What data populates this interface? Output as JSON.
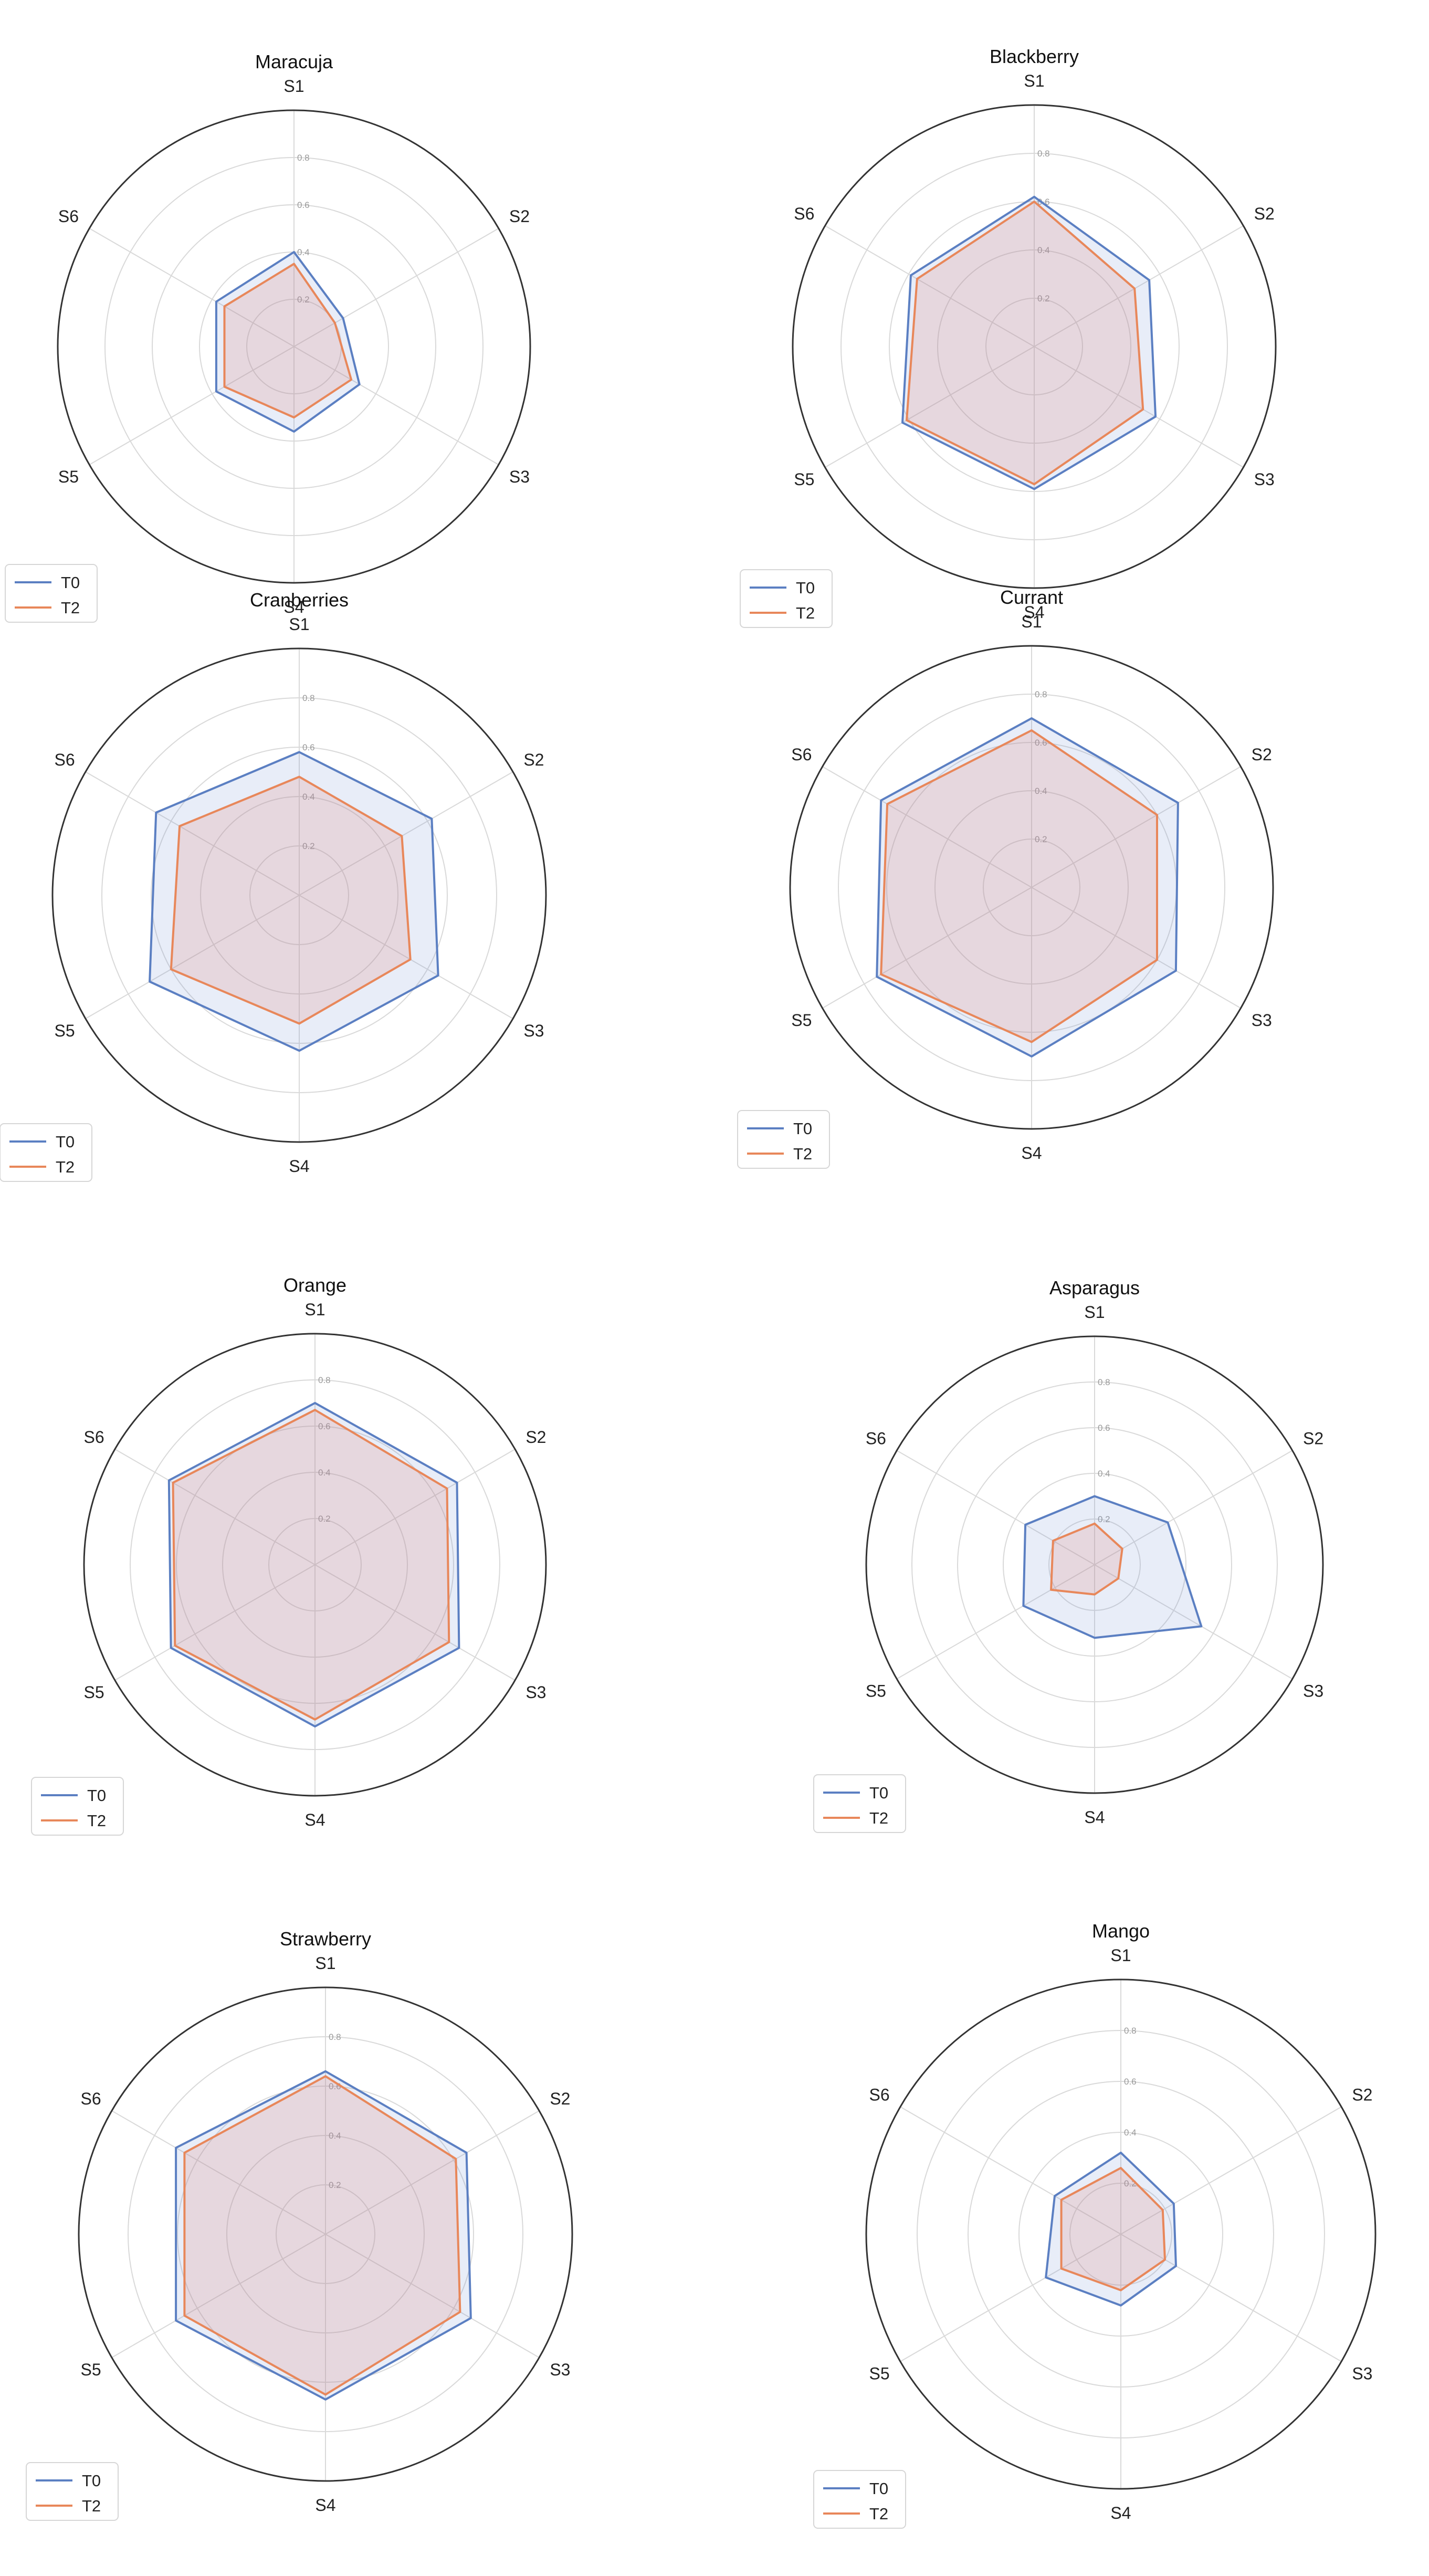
{
  "chart_data": [
    {
      "type": "radar",
      "title": "Maracuja",
      "categories": [
        "S1",
        "S2",
        "S3",
        "S4",
        "S5",
        "S6"
      ],
      "radial_ticks": [
        "0.2",
        "0.4",
        "0.6",
        "0.8"
      ],
      "rlim": [
        0,
        1
      ],
      "legend": "bottom-left",
      "series": [
        {
          "name": "T0",
          "color": "#5b7fc2",
          "values": [
            0.4,
            0.24,
            0.32,
            0.36,
            0.38,
            0.38
          ]
        },
        {
          "name": "T2",
          "color": "#e8875a",
          "values": [
            0.35,
            0.2,
            0.28,
            0.3,
            0.34,
            0.34
          ]
        }
      ]
    },
    {
      "type": "radar",
      "title": "Blackberry",
      "categories": [
        "S1",
        "S2",
        "S3",
        "S4",
        "S5",
        "S6"
      ],
      "radial_ticks": [
        "0.2",
        "0.4",
        "0.6",
        "0.8"
      ],
      "rlim": [
        0,
        1
      ],
      "legend": "bottom-left",
      "series": [
        {
          "name": "T0",
          "color": "#5b7fc2",
          "values": [
            0.62,
            0.55,
            0.58,
            0.59,
            0.63,
            0.59
          ]
        },
        {
          "name": "T2",
          "color": "#e8875a",
          "values": [
            0.6,
            0.48,
            0.52,
            0.57,
            0.61,
            0.56
          ]
        }
      ]
    },
    {
      "type": "radar",
      "title": "Cranberries",
      "categories": [
        "S1",
        "S2",
        "S3",
        "S4",
        "S5",
        "S6"
      ],
      "radial_ticks": [
        "0.2",
        "0.4",
        "0.6",
        "0.8"
      ],
      "rlim": [
        0,
        1
      ],
      "legend": "bottom-left",
      "series": [
        {
          "name": "T0",
          "color": "#5b7fc2",
          "values": [
            0.58,
            0.62,
            0.65,
            0.63,
            0.7,
            0.67
          ]
        },
        {
          "name": "T2",
          "color": "#e8875a",
          "values": [
            0.48,
            0.48,
            0.52,
            0.52,
            0.6,
            0.56
          ]
        }
      ]
    },
    {
      "type": "radar",
      "title": "Currant",
      "categories": [
        "S1",
        "S2",
        "S3",
        "S4",
        "S5",
        "S6"
      ],
      "radial_ticks": [
        "0.2",
        "0.4",
        "0.6",
        "0.8"
      ],
      "rlim": [
        0,
        1
      ],
      "legend": "bottom-left",
      "series": [
        {
          "name": "T0",
          "color": "#5b7fc2",
          "values": [
            0.7,
            0.7,
            0.69,
            0.7,
            0.74,
            0.72
          ]
        },
        {
          "name": "T2",
          "color": "#e8875a",
          "values": [
            0.65,
            0.6,
            0.6,
            0.64,
            0.72,
            0.69
          ]
        }
      ]
    },
    {
      "type": "radar",
      "title": "Orange",
      "categories": [
        "S1",
        "S2",
        "S3",
        "S4",
        "S5",
        "S6"
      ],
      "radial_ticks": [
        "0.2",
        "0.4",
        "0.6",
        "0.8"
      ],
      "rlim": [
        0,
        1
      ],
      "legend": "bottom-left",
      "series": [
        {
          "name": "T0",
          "color": "#5b7fc2",
          "values": [
            0.7,
            0.71,
            0.72,
            0.7,
            0.72,
            0.73
          ]
        },
        {
          "name": "T2",
          "color": "#e8875a",
          "values": [
            0.67,
            0.66,
            0.67,
            0.67,
            0.7,
            0.71
          ]
        }
      ]
    },
    {
      "type": "radar",
      "title": "Asparagus",
      "categories": [
        "S1",
        "S2",
        "S3",
        "S4",
        "S5",
        "S6"
      ],
      "radial_ticks": [
        "0.2",
        "0.4",
        "0.6",
        "0.8"
      ],
      "rlim": [
        0,
        1
      ],
      "legend": "bottom-left",
      "series": [
        {
          "name": "T0",
          "color": "#5b7fc2",
          "values": [
            0.3,
            0.37,
            0.54,
            0.32,
            0.36,
            0.35
          ]
        },
        {
          "name": "T2",
          "color": "#e8875a",
          "values": [
            0.18,
            0.14,
            0.12,
            0.13,
            0.22,
            0.21
          ]
        }
      ]
    },
    {
      "type": "radar",
      "title": "Strawberry",
      "categories": [
        "S1",
        "S2",
        "S3",
        "S4",
        "S5",
        "S6"
      ],
      "radial_ticks": [
        "0.2",
        "0.4",
        "0.6",
        "0.8"
      ],
      "rlim": [
        0,
        1
      ],
      "legend": "bottom-left",
      "series": [
        {
          "name": "T0",
          "color": "#5b7fc2",
          "values": [
            0.66,
            0.66,
            0.68,
            0.67,
            0.7,
            0.7
          ]
        },
        {
          "name": "T2",
          "color": "#e8875a",
          "values": [
            0.64,
            0.61,
            0.63,
            0.65,
            0.66,
            0.66
          ]
        }
      ]
    },
    {
      "type": "radar",
      "title": "Mango",
      "categories": [
        "S1",
        "S2",
        "S3",
        "S4",
        "S5",
        "S6"
      ],
      "radial_ticks": [
        "0.2",
        "0.4",
        "0.6",
        "0.8"
      ],
      "rlim": [
        0,
        1
      ],
      "legend": "bottom-left",
      "series": [
        {
          "name": "T0",
          "color": "#5b7fc2",
          "values": [
            0.32,
            0.24,
            0.25,
            0.28,
            0.34,
            0.3
          ]
        },
        {
          "name": "T2",
          "color": "#e8875a",
          "values": [
            0.26,
            0.19,
            0.2,
            0.22,
            0.27,
            0.27
          ]
        }
      ]
    }
  ]
}
